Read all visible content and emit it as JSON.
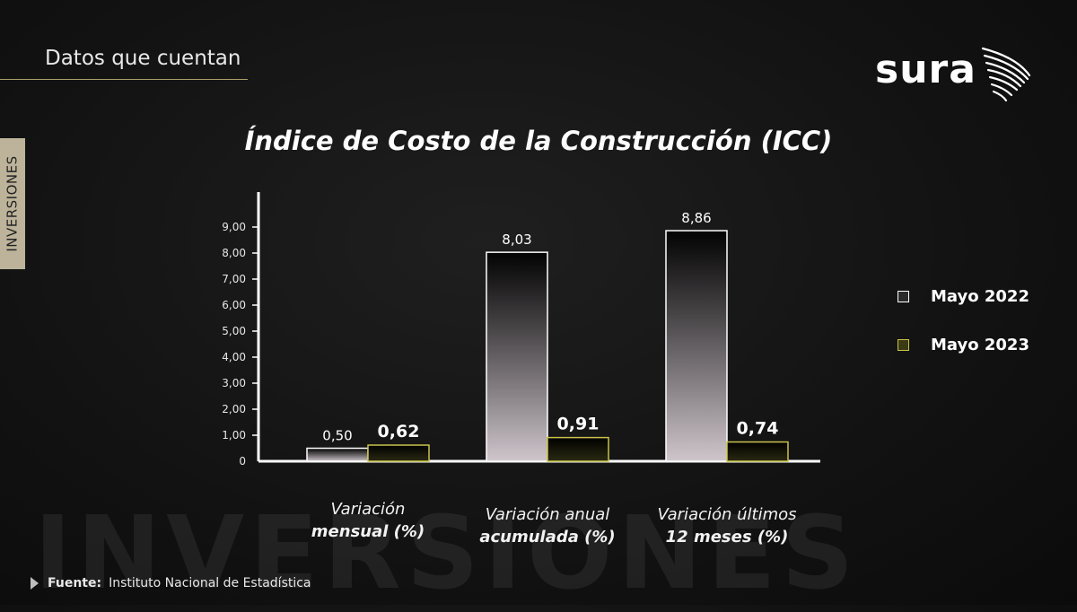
{
  "header": {
    "title": "Datos que cuentan"
  },
  "side_tab": {
    "label": "INVERSIONES"
  },
  "logo": {
    "text": "sura"
  },
  "watermark": {
    "text": "INVERSIONES"
  },
  "chart_data": {
    "type": "bar",
    "title": "Índice de Costo de la Construcción (ICC)",
    "categories": [
      {
        "line1": "Variación",
        "line2": "mensual (%)"
      },
      {
        "line1": "Variación anual",
        "line2": "acumulada (%)"
      },
      {
        "line1": "Variación últimos",
        "line2": "12 meses (%)"
      }
    ],
    "series": [
      {
        "name": "Mayo 2022",
        "values": [
          0.5,
          8.03,
          8.86
        ],
        "labels": [
          "0,50",
          "8,03",
          "8,86"
        ],
        "color": "#ffffff"
      },
      {
        "name": "Mayo 2023",
        "values": [
          0.62,
          0.91,
          0.74
        ],
        "labels": [
          "0,62",
          "0,91",
          "0,74"
        ],
        "color": "#c9c24a"
      }
    ],
    "y_ticks": [
      "0",
      "1,00",
      "2,00",
      "3,00",
      "4,00",
      "5,00",
      "6,00",
      "7,00",
      "8,00",
      "9,00"
    ],
    "ylim": [
      0,
      9
    ],
    "legend_position": "right",
    "grid": false
  },
  "source": {
    "label": "Fuente:",
    "text": "Instituto Nacional de Estadística"
  }
}
